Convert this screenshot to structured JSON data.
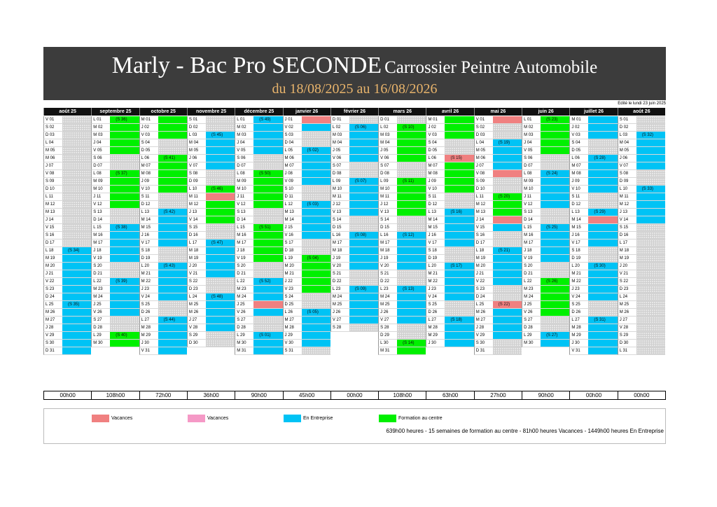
{
  "header": {
    "title_main": "Marly - Bac Pro SECONDE",
    "title_sub": "Carrossier Peintre Automobile",
    "date_range": "du 18/08/2025 au 16/08/2026",
    "edited": "Edité le lundi 23 juin 2025"
  },
  "colors": {
    "entreprise": "#00c3f5",
    "formation": "#00f000",
    "vacances": "#f08080",
    "vacances2": "#f599c6",
    "none": "#e6e6e6",
    "banner": "#3c3c3c",
    "subtitle": "#e7b36b"
  },
  "legend": {
    "vacances1": "Vacances",
    "vacances2": "Vacances",
    "entreprise": "En Entreprise",
    "formation": "Formation au centre",
    "summary": "639h00 heures - 15 semaines de formation au centre - 81h00 heures Vacances - 1449h00 heures En Entreprise"
  },
  "months": [
    {
      "name": "août 25",
      "total": "00h00",
      "days": [
        "V 01",
        "S 02",
        "D 03",
        "L 04",
        "M 05",
        "M 06",
        "J 07",
        "V 08",
        "S 09",
        "D 10",
        "L 11",
        "M 12",
        "M 13",
        "J 14",
        "V 15",
        "S 16",
        "D 17",
        "L 18",
        "M 19",
        "M 20",
        "J 21",
        "V 22",
        "S 23",
        "D 24",
        "L 25",
        "M 26",
        "M 27",
        "J 28",
        "V 29",
        "S 30",
        "D 31"
      ],
      "blocks": [
        {
          "s": 17,
          "e": 23,
          "t": "e",
          "wk": "(S 34)"
        },
        {
          "s": 24,
          "e": 30,
          "t": "e",
          "wk": "(S 35)"
        }
      ]
    },
    {
      "name": "septembre 25",
      "total": "108h00",
      "days": [
        "L 01",
        "M 02",
        "M 03",
        "J 04",
        "V 05",
        "S 06",
        "D 07",
        "L 08",
        "M 09",
        "M 10",
        "J 11",
        "V 12",
        "S 13",
        "D 14",
        "L 15",
        "M 16",
        "M 17",
        "J 18",
        "V 19",
        "S 20",
        "D 21",
        "L 22",
        "M 23",
        "M 24",
        "J 25",
        "V 26",
        "S 27",
        "D 28",
        "L 29",
        "M 30"
      ],
      "blocks": [
        {
          "s": 0,
          "e": 4,
          "t": "f",
          "wk": "(S 36)"
        },
        {
          "s": 7,
          "e": 11,
          "t": "f",
          "wk": "(S 37)"
        },
        {
          "s": 14,
          "e": 18,
          "t": "e",
          "wk": "(S 38)"
        },
        {
          "s": 21,
          "e": 25,
          "t": "e",
          "wk": "(S 39)"
        },
        {
          "s": 28,
          "e": 29,
          "t": "f",
          "wk": "(S 40)"
        }
      ]
    },
    {
      "name": "octobre 25",
      "total": "72h00",
      "days": [
        "M 01",
        "J 02",
        "V 03",
        "S 04",
        "D 05",
        "L 06",
        "M 07",
        "M 08",
        "J 09",
        "V 10",
        "S 11",
        "D 12",
        "L 13",
        "M 14",
        "M 15",
        "J 16",
        "V 17",
        "S 18",
        "D 19",
        "L 20",
        "M 21",
        "M 22",
        "J 23",
        "V 24",
        "S 25",
        "D 26",
        "L 27",
        "M 28",
        "M 29",
        "J 30",
        "V 31"
      ],
      "blocks": [
        {
          "s": 0,
          "e": 2,
          "t": "f",
          "wk": ""
        },
        {
          "s": 5,
          "e": 9,
          "t": "f",
          "wk": "(S 41)"
        },
        {
          "s": 12,
          "e": 16,
          "t": "e",
          "wk": "(S 42)"
        },
        {
          "s": 19,
          "e": 23,
          "t": "e",
          "wk": "(S 43)"
        },
        {
          "s": 26,
          "e": 30,
          "t": "e",
          "wk": "(S 44)"
        }
      ]
    },
    {
      "name": "novembre 25",
      "total": "36h00",
      "days": [
        "S 01",
        "D 02",
        "L 03",
        "M 04",
        "M 05",
        "J 06",
        "V 07",
        "S 08",
        "D 09",
        "L 10",
        "M 11",
        "M 12",
        "J 13",
        "V 14",
        "S 15",
        "D 16",
        "L 17",
        "M 18",
        "M 19",
        "J 20",
        "V 21",
        "S 22",
        "D 23",
        "L 24",
        "M 25",
        "M 26",
        "J 27",
        "V 28",
        "S 29",
        "D 30"
      ],
      "blocks": [
        {
          "s": 2,
          "e": 6,
          "t": "e",
          "wk": "(S 45)"
        },
        {
          "s": 9,
          "e": 9,
          "t": "f",
          "wk": "(S 46)"
        },
        {
          "s": 10,
          "e": 10,
          "t": "v",
          "wk": ""
        },
        {
          "s": 11,
          "e": 13,
          "t": "f",
          "wk": ""
        },
        {
          "s": 16,
          "e": 20,
          "t": "e",
          "wk": "(S 47)"
        },
        {
          "s": 23,
          "e": 27,
          "t": "e",
          "wk": "(S 48)"
        }
      ]
    },
    {
      "name": "décembre 25",
      "total": "90h00",
      "days": [
        "L 01",
        "M 02",
        "M 03",
        "J 04",
        "V 05",
        "S 06",
        "D 07",
        "L 08",
        "M 09",
        "M 10",
        "J 11",
        "V 12",
        "S 13",
        "D 14",
        "L 15",
        "M 16",
        "M 17",
        "J 18",
        "V 19",
        "S 20",
        "D 21",
        "L 22",
        "M 23",
        "M 24",
        "J 25",
        "V 26",
        "S 27",
        "D 28",
        "L 29",
        "M 30",
        "M 31"
      ],
      "blocks": [
        {
          "s": 0,
          "e": 4,
          "t": "e",
          "wk": "(S 49)"
        },
        {
          "s": 7,
          "e": 11,
          "t": "f",
          "wk": "(S 50)"
        },
        {
          "s": 14,
          "e": 18,
          "t": "f",
          "wk": "(S 51)"
        },
        {
          "s": 21,
          "e": 23,
          "t": "e",
          "wk": "(S 52)"
        },
        {
          "s": 24,
          "e": 24,
          "t": "v",
          "wk": ""
        },
        {
          "s": 25,
          "e": 25,
          "t": "e",
          "wk": ""
        },
        {
          "s": 28,
          "e": 30,
          "t": "e",
          "wk": "(S 01)"
        }
      ]
    },
    {
      "name": "janvier 26",
      "total": "45h00",
      "days": [
        "J 01",
        "V 02",
        "S 03",
        "D 04",
        "L 05",
        "M 06",
        "M 07",
        "J 08",
        "V 09",
        "S 10",
        "D 11",
        "L 12",
        "M 13",
        "M 14",
        "J 15",
        "V 16",
        "S 17",
        "D 18",
        "L 19",
        "M 20",
        "M 21",
        "J 22",
        "V 23",
        "S 24",
        "D 25",
        "L 26",
        "M 27",
        "M 28",
        "J 29",
        "V 30",
        "S 31"
      ],
      "blocks": [
        {
          "s": 0,
          "e": 0,
          "t": "v",
          "wk": ""
        },
        {
          "s": 1,
          "e": 1,
          "t": "e",
          "wk": ""
        },
        {
          "s": 4,
          "e": 8,
          "t": "e",
          "wk": "(S 02)"
        },
        {
          "s": 11,
          "e": 15,
          "t": "e",
          "wk": "(S 03)"
        },
        {
          "s": 18,
          "e": 22,
          "t": "f",
          "wk": "(S 04)"
        },
        {
          "s": 25,
          "e": 29,
          "t": "e",
          "wk": "(S 05)"
        }
      ]
    },
    {
      "name": "février 26",
      "total": "00h00",
      "days": [
        "D 01",
        "L 02",
        "M 03",
        "M 04",
        "J 05",
        "V 06",
        "S 07",
        "D 08",
        "L 09",
        "M 10",
        "M 11",
        "J 12",
        "V 13",
        "S 14",
        "D 15",
        "L 16",
        "M 17",
        "M 18",
        "J 19",
        "V 20",
        "S 21",
        "D 22",
        "L 23",
        "M 24",
        "M 25",
        "J 26",
        "V 27",
        "S 28"
      ],
      "blocks": [
        {
          "s": 1,
          "e": 5,
          "t": "e",
          "wk": "(S 06)"
        },
        {
          "s": 8,
          "e": 12,
          "t": "e",
          "wk": "(S 07)"
        },
        {
          "s": 15,
          "e": 19,
          "t": "e",
          "wk": "(S 08)"
        },
        {
          "s": 22,
          "e": 26,
          "t": "e",
          "wk": "(S 09)"
        }
      ]
    },
    {
      "name": "mars 26",
      "total": "108h00",
      "days": [
        "D 01",
        "L 02",
        "M 03",
        "M 04",
        "J 05",
        "V 06",
        "S 07",
        "D 08",
        "L 09",
        "M 10",
        "M 11",
        "J 12",
        "V 13",
        "S 14",
        "D 15",
        "L 16",
        "M 17",
        "M 18",
        "J 19",
        "V 20",
        "S 21",
        "D 22",
        "L 23",
        "M 24",
        "M 25",
        "J 26",
        "V 27",
        "S 28",
        "D 29",
        "L 30",
        "M 31"
      ],
      "blocks": [
        {
          "s": 1,
          "e": 5,
          "t": "f",
          "wk": "(S 10)"
        },
        {
          "s": 8,
          "e": 12,
          "t": "f",
          "wk": "(S 11)"
        },
        {
          "s": 15,
          "e": 19,
          "t": "e",
          "wk": "(S 12)"
        },
        {
          "s": 22,
          "e": 26,
          "t": "e",
          "wk": "(S 13)"
        },
        {
          "s": 29,
          "e": 30,
          "t": "f",
          "wk": "(S 14)"
        }
      ]
    },
    {
      "name": "avril 26",
      "total": "63h00",
      "days": [
        "M 01",
        "J 02",
        "V 03",
        "S 04",
        "D 05",
        "L 06",
        "M 07",
        "M 08",
        "J 09",
        "V 10",
        "S 11",
        "D 12",
        "L 13",
        "M 14",
        "M 15",
        "J 16",
        "V 17",
        "S 18",
        "D 19",
        "L 20",
        "M 21",
        "M 22",
        "J 23",
        "V 24",
        "S 25",
        "D 26",
        "L 27",
        "M 28",
        "M 29",
        "J 30"
      ],
      "blocks": [
        {
          "s": 0,
          "e": 2,
          "t": "f",
          "wk": ""
        },
        {
          "s": 5,
          "e": 5,
          "t": "v",
          "wk": "(S 15)"
        },
        {
          "s": 6,
          "e": 9,
          "t": "f",
          "wk": ""
        },
        {
          "s": 12,
          "e": 16,
          "t": "e",
          "wk": "(S 16)"
        },
        {
          "s": 19,
          "e": 23,
          "t": "e",
          "wk": "(S 17)"
        },
        {
          "s": 26,
          "e": 29,
          "t": "e",
          "wk": "(S 18)"
        }
      ]
    },
    {
      "name": "mai 26",
      "total": "27h00",
      "days": [
        "V 01",
        "S 02",
        "D 03",
        "L 04",
        "M 05",
        "M 06",
        "J 07",
        "V 08",
        "S 09",
        "D 10",
        "L 11",
        "M 12",
        "M 13",
        "J 14",
        "V 15",
        "S 16",
        "D 17",
        "L 18",
        "M 19",
        "M 20",
        "J 21",
        "V 22",
        "S 23",
        "D 24",
        "L 25",
        "M 26",
        "M 27",
        "J 28",
        "V 29",
        "S 30",
        "D 31"
      ],
      "blocks": [
        {
          "s": 0,
          "e": 0,
          "t": "v",
          "wk": ""
        },
        {
          "s": 3,
          "e": 6,
          "t": "e",
          "wk": "(S 19)"
        },
        {
          "s": 7,
          "e": 7,
          "t": "v",
          "wk": ""
        },
        {
          "s": 10,
          "e": 12,
          "t": "f",
          "wk": "(S 20)"
        },
        {
          "s": 13,
          "e": 13,
          "t": "v",
          "wk": ""
        },
        {
          "s": 14,
          "e": 14,
          "t": "e",
          "wk": ""
        },
        {
          "s": 17,
          "e": 21,
          "t": "e",
          "wk": "(S 21)"
        },
        {
          "s": 24,
          "e": 24,
          "t": "v",
          "wk": "(S 22)"
        },
        {
          "s": 25,
          "e": 28,
          "t": "e",
          "wk": ""
        }
      ]
    },
    {
      "name": "juin 26",
      "total": "90h00",
      "days": [
        "L 01",
        "M 02",
        "M 03",
        "J 04",
        "V 05",
        "S 06",
        "D 07",
        "L 08",
        "M 09",
        "M 10",
        "J 11",
        "V 12",
        "S 13",
        "D 14",
        "L 15",
        "M 16",
        "M 17",
        "J 18",
        "V 19",
        "S 20",
        "D 21",
        "L 22",
        "M 23",
        "M 24",
        "J 25",
        "V 26",
        "S 27",
        "D 28",
        "L 29",
        "M 30"
      ],
      "blocks": [
        {
          "s": 0,
          "e": 4,
          "t": "f",
          "wk": "(S 23)"
        },
        {
          "s": 7,
          "e": 11,
          "t": "e",
          "wk": "(S 24)"
        },
        {
          "s": 14,
          "e": 18,
          "t": "e",
          "wk": "(S 25)"
        },
        {
          "s": 21,
          "e": 25,
          "t": "f",
          "wk": "(S 26)"
        },
        {
          "s": 28,
          "e": 29,
          "t": "e",
          "wk": "(S 27)"
        }
      ]
    },
    {
      "name": "juillet 26",
      "total": "00h00",
      "days": [
        "M 01",
        "J 02",
        "V 03",
        "S 04",
        "D 05",
        "L 06",
        "M 07",
        "M 08",
        "J 09",
        "V 10",
        "S 11",
        "D 12",
        "L 13",
        "M 14",
        "M 15",
        "J 16",
        "V 17",
        "S 18",
        "D 19",
        "L 20",
        "M 21",
        "M 22",
        "J 23",
        "V 24",
        "S 25",
        "D 26",
        "L 27",
        "M 28",
        "M 29",
        "J 30",
        "V 31"
      ],
      "blocks": [
        {
          "s": 0,
          "e": 2,
          "t": "e",
          "wk": ""
        },
        {
          "s": 5,
          "e": 9,
          "t": "e",
          "wk": "(S 28)"
        },
        {
          "s": 12,
          "e": 12,
          "t": "e",
          "wk": "(S 29)"
        },
        {
          "s": 13,
          "e": 13,
          "t": "v",
          "wk": ""
        },
        {
          "s": 14,
          "e": 16,
          "t": "e",
          "wk": ""
        },
        {
          "s": 19,
          "e": 23,
          "t": "e",
          "wk": "(S 30)"
        },
        {
          "s": 26,
          "e": 30,
          "t": "e",
          "wk": "(S 31)"
        }
      ]
    },
    {
      "name": "août 26",
      "total": "00h00",
      "days": [
        "S 01",
        "D 02",
        "L 03",
        "M 04",
        "M 05",
        "J 06",
        "V 07",
        "S 08",
        "D 09",
        "L 10",
        "M 11",
        "M 12",
        "J 13",
        "V 14",
        "S 15",
        "D 16",
        "L 17",
        "M 18",
        "M 19",
        "J 20",
        "V 21",
        "S 22",
        "D 23",
        "L 24",
        "M 25",
        "M 26",
        "J 27",
        "V 28",
        "S 29",
        "D 30",
        "L 31"
      ],
      "blocks": [
        {
          "s": 2,
          "e": 6,
          "t": "e",
          "wk": "(S 32)"
        },
        {
          "s": 9,
          "e": 13,
          "t": "e",
          "wk": "(S 33)"
        }
      ]
    }
  ]
}
